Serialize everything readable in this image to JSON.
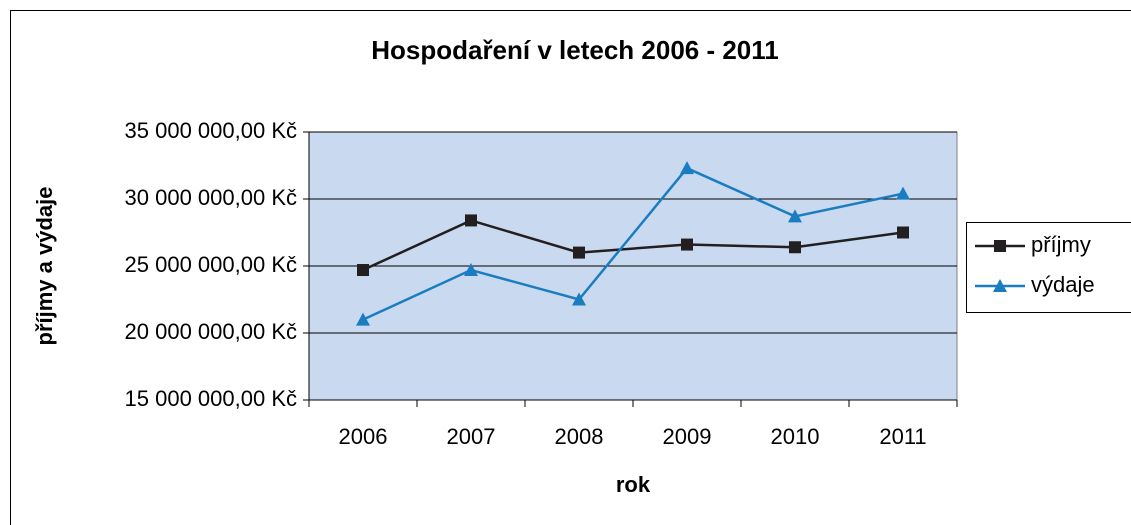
{
  "chart_data": {
    "type": "line",
    "title": "Hospodaření v letech 2006 - 2011",
    "x_label": "rok",
    "y_label": "příjmy a výdaje",
    "categories": [
      "2006",
      "2007",
      "2008",
      "2009",
      "2010",
      "2011"
    ],
    "series": [
      {
        "name": "příjmy",
        "color": "#231f20",
        "marker": "square",
        "values": [
          24700000,
          28400000,
          26000000,
          26600000,
          26400000,
          27500000
        ]
      },
      {
        "name": "výdaje",
        "color": "#1a7dc0",
        "marker": "triangle",
        "values": [
          21000000,
          24700000,
          22500000,
          32300000,
          28700000,
          30400000
        ]
      }
    ],
    "ylim": [
      15000000,
      35000000
    ],
    "yticks": [
      {
        "value": 15000000,
        "label": "15 000 000,00 Kč"
      },
      {
        "value": 20000000,
        "label": "20 000 000,00 Kč"
      },
      {
        "value": 25000000,
        "label": "25 000 000,00 Kč"
      },
      {
        "value": 30000000,
        "label": "30 000 000,00 Kč"
      },
      {
        "value": 35000000,
        "label": "35 000 000,00 Kč"
      }
    ],
    "grid": true,
    "legend": "right",
    "plot_background": "#c9d9f0"
  }
}
